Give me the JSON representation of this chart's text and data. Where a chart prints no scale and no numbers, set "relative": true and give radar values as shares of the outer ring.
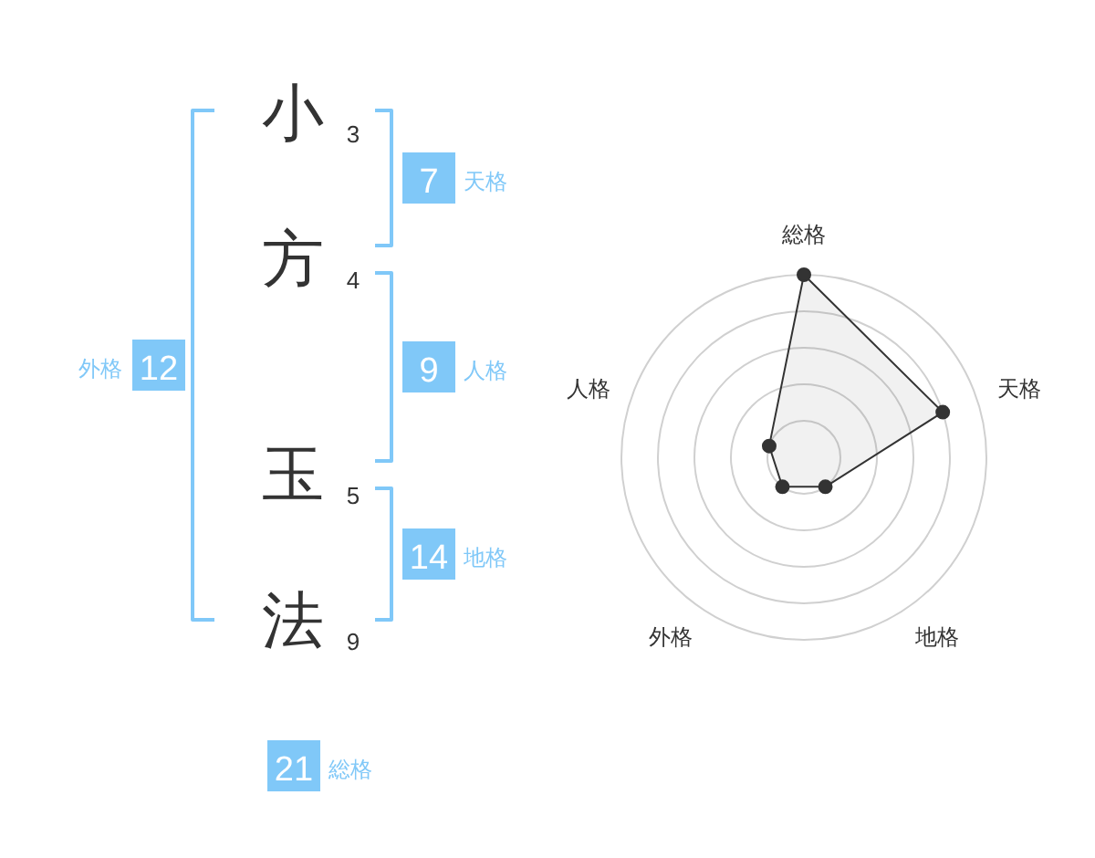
{
  "chart_data": [
    {
      "type": "other",
      "categories": [
        "小",
        "方",
        "玉",
        "法"
      ],
      "values": [
        3,
        4,
        5,
        9
      ],
      "data_labels": true,
      "color": "#80c8f8",
      "annotations": [
        "7",
        "天格",
        "9",
        "人格",
        "14",
        "地格",
        "12",
        "外格",
        "21",
        "総格"
      ]
    },
    {
      "type": "radar",
      "categories": [
        "総格",
        "天格",
        "地格",
        "外格",
        "人格"
      ],
      "relative": true,
      "grid": true,
      "marker": "circle",
      "series": [
        {
          "color": "#333333",
          "values": [
            1,
            0.8,
            0.2,
            0.2,
            0.2
          ]
        }
      ]
    }
  ]
}
